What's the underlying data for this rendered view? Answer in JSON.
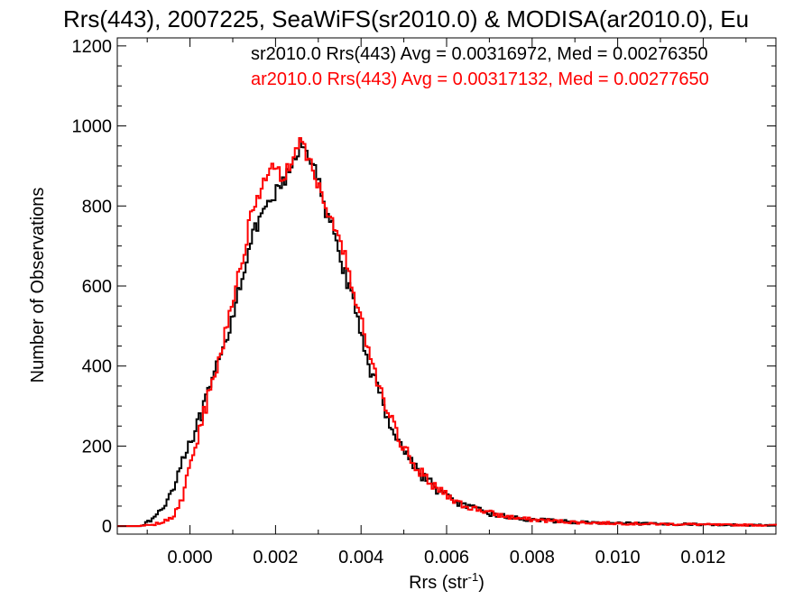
{
  "chart_data": {
    "type": "line",
    "style": "step-histogram",
    "title": "Rrs(443), 2007225, SeaWiFS(sr2010.0) & MODISA(ar2010.0), Eu",
    "xlabel": "Rrs (str",
    "xlabel_sup": "-1",
    "xlabel_close": ")",
    "ylabel": "Number of Observations",
    "xlim": [
      -0.0017,
      0.0137
    ],
    "ylim": [
      -20,
      1220
    ],
    "x_ticks": [
      0.0,
      0.002,
      0.004,
      0.006,
      0.008,
      0.01,
      0.012
    ],
    "x_tick_labels": [
      "0.000",
      "0.002",
      "0.004",
      "0.006",
      "0.008",
      "0.010",
      "0.012"
    ],
    "y_ticks": [
      0,
      200,
      400,
      600,
      800,
      1000,
      1200
    ],
    "y_tick_labels": [
      "0",
      "200",
      "400",
      "600",
      "800",
      "1000",
      "1200"
    ],
    "grid": false,
    "legend_position": "top-right",
    "series": [
      {
        "name": "sr2010.0",
        "legend_text": "sr2010.0 Rrs(443) Avg = 0.00316972, Med = 0.00276350",
        "color": "#000000",
        "x": [
          -0.0017,
          -0.0012,
          -0.001,
          -0.0008,
          -0.0006,
          -0.0004,
          -0.0002,
          0.0,
          0.0002,
          0.0004,
          0.0006,
          0.0008,
          0.001,
          0.0012,
          0.0014,
          0.0016,
          0.0018,
          0.002,
          0.0022,
          0.0024,
          0.0026,
          0.0028,
          0.003,
          0.0032,
          0.0034,
          0.0036,
          0.0038,
          0.004,
          0.0042,
          0.0044,
          0.0046,
          0.0048,
          0.005,
          0.0052,
          0.0054,
          0.0056,
          0.0058,
          0.006,
          0.0062,
          0.0064,
          0.0066,
          0.0068,
          0.007,
          0.0072,
          0.0074,
          0.0076,
          0.0078,
          0.008,
          0.0085,
          0.009,
          0.0095,
          0.01,
          0.0105,
          0.011,
          0.0115,
          0.012,
          0.0125,
          0.013,
          0.0135
        ],
        "y": [
          0,
          0,
          8,
          25,
          50,
          95,
          160,
          215,
          255,
          320,
          385,
          445,
          530,
          620,
          700,
          760,
          790,
          830,
          860,
          900,
          960,
          930,
          860,
          770,
          730,
          640,
          560,
          480,
          400,
          340,
          280,
          230,
          190,
          160,
          130,
          110,
          90,
          75,
          62,
          52,
          45,
          38,
          32,
          27,
          24,
          20,
          18,
          16,
          13,
          10,
          8,
          7,
          6,
          5,
          5,
          4,
          3,
          3,
          2
        ]
      },
      {
        "name": "ar2010.0",
        "legend_text": "ar2010.0 Rrs(443) Avg = 0.00317132, Med = 0.00277650",
        "color": "#ff0000",
        "x": [
          -0.0017,
          -0.0012,
          -0.001,
          -0.0008,
          -0.0006,
          -0.0004,
          -0.0002,
          0.0,
          0.0002,
          0.0004,
          0.0006,
          0.0008,
          0.001,
          0.0012,
          0.0014,
          0.0016,
          0.0018,
          0.002,
          0.0022,
          0.0024,
          0.0026,
          0.0028,
          0.003,
          0.0032,
          0.0034,
          0.0036,
          0.0038,
          0.004,
          0.0042,
          0.0044,
          0.0046,
          0.0048,
          0.005,
          0.0052,
          0.0054,
          0.0056,
          0.0058,
          0.006,
          0.0062,
          0.0064,
          0.0066,
          0.0068,
          0.007,
          0.0072,
          0.0074,
          0.0076,
          0.0078,
          0.008,
          0.0085,
          0.009,
          0.0095,
          0.01,
          0.0105,
          0.011,
          0.0115,
          0.012,
          0.0125,
          0.013,
          0.0135
        ],
        "y": [
          0,
          0,
          2,
          5,
          12,
          25,
          60,
          150,
          230,
          310,
          390,
          470,
          570,
          660,
          760,
          830,
          890,
          900,
          870,
          920,
          960,
          910,
          850,
          790,
          750,
          680,
          600,
          510,
          420,
          350,
          290,
          240,
          200,
          165,
          135,
          110,
          92,
          78,
          64,
          54,
          46,
          40,
          34,
          28,
          24,
          21,
          18,
          16,
          13,
          10,
          8,
          7,
          6,
          5,
          5,
          4,
          3,
          3,
          2
        ]
      }
    ]
  }
}
